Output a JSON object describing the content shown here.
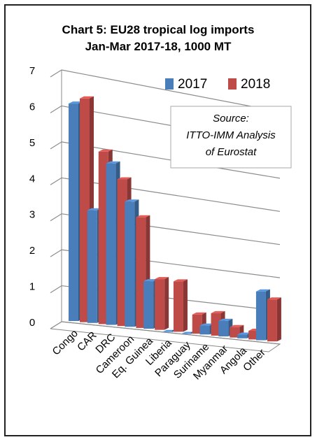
{
  "chart_data": {
    "type": "bar",
    "title_lines": [
      "Chart 5: EU28 tropical log imports",
      "Jan-Mar 2017-18, 1000 MT"
    ],
    "categories": [
      "Congo",
      "CAR",
      "DRC",
      "Cameroon",
      "Eq. Guinea",
      "Liberia",
      "Paraguay",
      "Suriname",
      "Myanmar",
      "Angola",
      "Other"
    ],
    "series": [
      {
        "name": "2017",
        "color": "#4a7ebb",
        "values": [
          6.1,
          3.2,
          4.6,
          3.6,
          1.4,
          0.0,
          0.0,
          0.3,
          0.5,
          0.15,
          1.5
        ]
      },
      {
        "name": "2018",
        "color": "#be4b48",
        "values": [
          6.3,
          4.9,
          4.2,
          3.2,
          1.5,
          1.5,
          0.6,
          0.7,
          0.35,
          0.3,
          1.3
        ]
      }
    ],
    "yticks": [
      "0",
      "1",
      "2",
      "3",
      "4",
      "5",
      "6",
      "7"
    ],
    "ylim": [
      0,
      7
    ],
    "grid": true,
    "legend_position": "top-right",
    "source_lines": [
      "Source:",
      "ITTO-IMM Analysis",
      "of Eurostat"
    ]
  }
}
